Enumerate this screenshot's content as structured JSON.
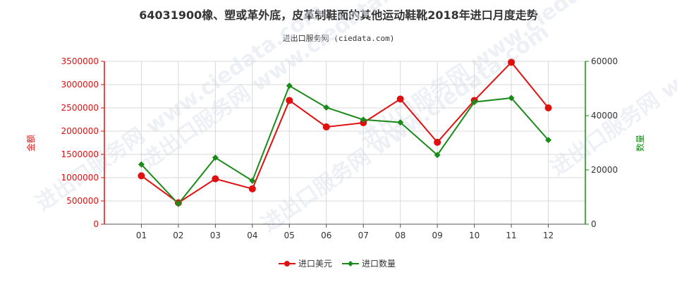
{
  "chart_data": {
    "type": "line",
    "title": "64031900橡、塑或革外底，皮革制鞋面的其他运动鞋靴2018年进口月度走势",
    "subtitle": "进出口服务网 (ciedata.com)",
    "watermark": "进出口服务网 www.ciedata.com",
    "categories": [
      "01",
      "02",
      "03",
      "04",
      "05",
      "06",
      "07",
      "08",
      "09",
      "10",
      "11",
      "12"
    ],
    "y_left": {
      "label": "金额",
      "range": [
        0,
        3500000
      ],
      "ticks": [
        0,
        500000,
        1000000,
        1500000,
        2000000,
        2500000,
        3000000,
        3500000
      ],
      "color": "#e01010"
    },
    "y_right": {
      "label": "数量",
      "range": [
        0,
        60000
      ],
      "ticks": [
        0,
        20000,
        40000,
        60000
      ],
      "color": "#1a8a1a"
    },
    "series": [
      {
        "name": "进口美元",
        "axis": "left",
        "color": "#e01010",
        "values": [
          1040000,
          460000,
          975000,
          760000,
          2660000,
          2090000,
          2180000,
          2690000,
          1760000,
          2660000,
          3480000,
          2500000
        ]
      },
      {
        "name": "进口数量",
        "axis": "right",
        "color": "#1a8a1a",
        "values": [
          22000,
          7500,
          24500,
          16000,
          51000,
          43000,
          38500,
          37500,
          25500,
          45000,
          46500,
          31000
        ]
      }
    ],
    "grid": true,
    "legend_position": "bottom-center"
  }
}
